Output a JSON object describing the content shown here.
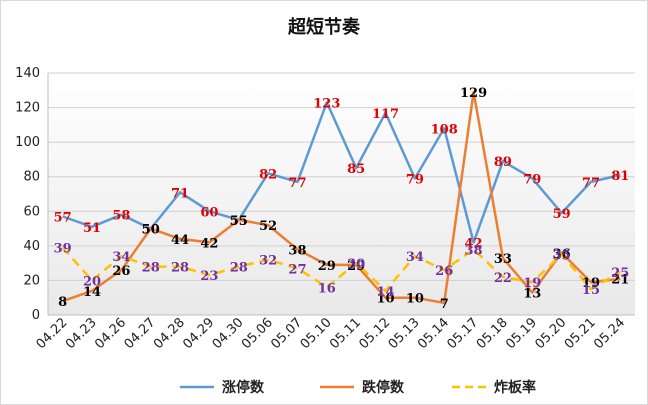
{
  "chart_data": {
    "type": "line",
    "title": "超短节奏",
    "xlabel": "",
    "ylabel": "",
    "ylim": [
      0,
      140
    ],
    "yticks": [
      0,
      20,
      40,
      60,
      80,
      100,
      120,
      140
    ],
    "grid": true,
    "legend_position": "bottom",
    "categories": [
      "04.22",
      "04.23",
      "04.26",
      "04.27",
      "04.28",
      "04.29",
      "04.30",
      "05.06",
      "05.07",
      "05.10",
      "05.11",
      "05.12",
      "05.13",
      "05.14",
      "05.17",
      "05.18",
      "05.19",
      "05.20",
      "05.21",
      "05.24"
    ],
    "series": [
      {
        "name": "涨停数",
        "color": "#5b9bd5",
        "label_color": "#e00000",
        "dashed": false,
        "values": [
          57,
          51,
          58,
          50,
          71,
          60,
          55,
          82,
          77,
          123,
          85,
          117,
          79,
          108,
          42,
          89,
          79,
          59,
          77,
          81
        ]
      },
      {
        "name": "跌停数",
        "color": "#ed7d31",
        "label_color": "#000000",
        "dashed": false,
        "values": [
          8,
          14,
          26,
          50,
          44,
          42,
          55,
          52,
          38,
          29,
          29,
          10,
          10,
          7,
          129,
          33,
          13,
          36,
          19,
          21
        ]
      },
      {
        "name": "炸板率",
        "color": "#ffc000",
        "label_color": "#7030a0",
        "dashed": true,
        "values": [
          39,
          20,
          34,
          28,
          28,
          23,
          28,
          32,
          27,
          16,
          30,
          14,
          34,
          26,
          38,
          22,
          19,
          35,
          15,
          25
        ]
      }
    ]
  }
}
